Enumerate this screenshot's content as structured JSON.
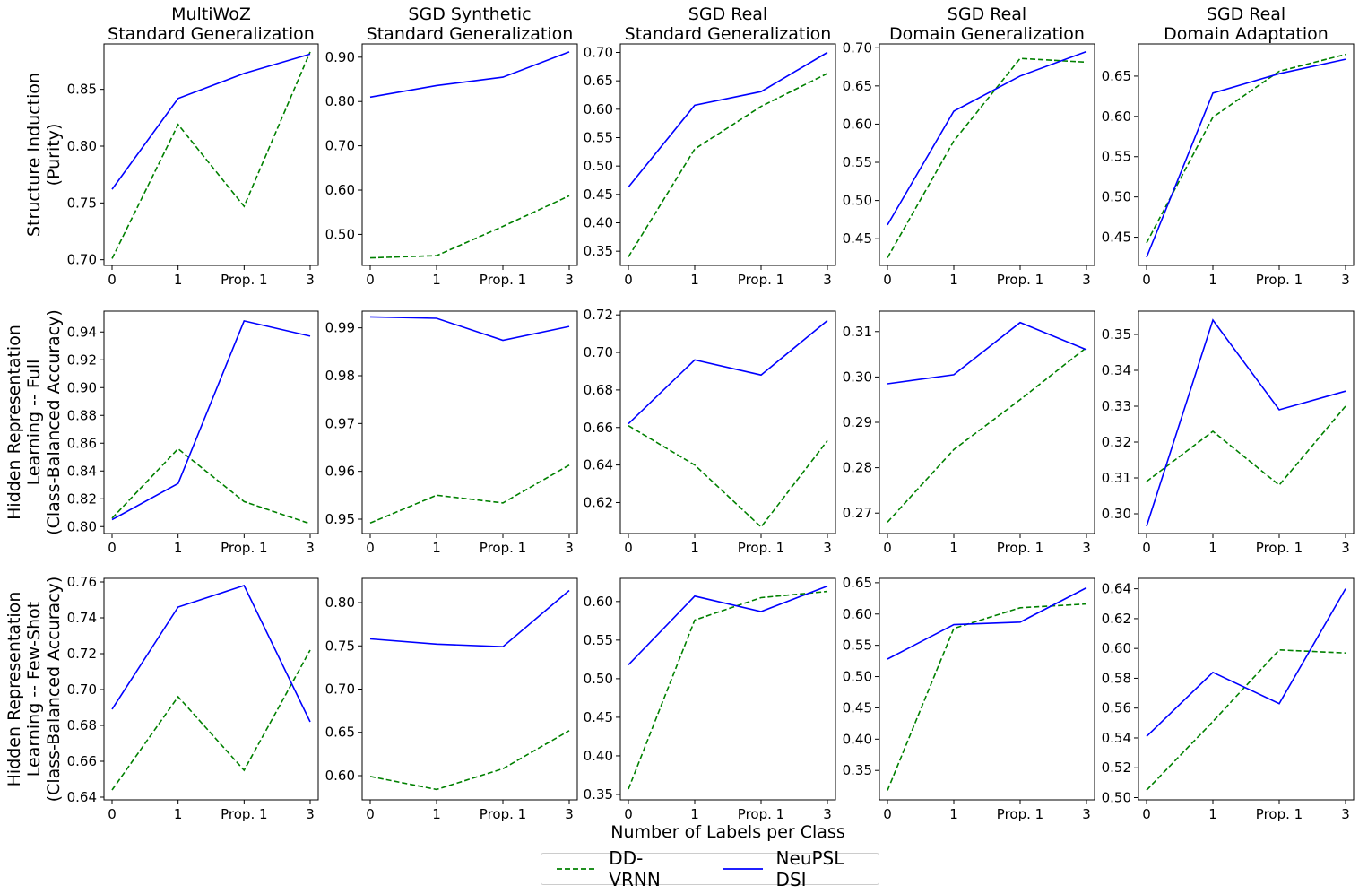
{
  "figure": {
    "xlabel": "Number of Labels per Class",
    "row_labels": [
      [
        "Structure Induction",
        "(Purity)"
      ],
      [
        "Hidden Representation",
        "Learning -- Full",
        "(Class-Balanced Accuracy)"
      ],
      [
        "Hidden Representation",
        "Learning -- Few-Shot",
        "(Class-Balanced Accuracy)"
      ]
    ],
    "column_titles": [
      [
        "MultiWoZ",
        "Standard Generalization"
      ],
      [
        "SGD Synthetic",
        "Standard Generalization"
      ],
      [
        "SGD Real",
        "Standard Generalization"
      ],
      [
        "SGD Real",
        "Domain Generalization"
      ],
      [
        "SGD Real",
        "Domain Adaptation"
      ]
    ],
    "legend": [
      {
        "label": "DD-VRNN",
        "color": "#008000",
        "style": "dashed"
      },
      {
        "label": "NeuPSL DSI",
        "color": "#0000ff",
        "style": "solid"
      }
    ]
  },
  "chart_data": [
    {
      "type": "line",
      "row": 0,
      "col": 0,
      "categories": [
        "0",
        "1",
        "Prop. 1",
        "3"
      ],
      "ylim": [
        0.695,
        0.89
      ],
      "yticks": [
        "0.70",
        "0.75",
        "0.80",
        "0.85"
      ],
      "series": [
        {
          "name": "DD-VRNN",
          "values": [
            0.701,
            0.819,
            0.747,
            0.883
          ]
        },
        {
          "name": "NeuPSL DSI",
          "values": [
            0.762,
            0.842,
            0.864,
            0.881
          ]
        }
      ]
    },
    {
      "type": "line",
      "row": 0,
      "col": 1,
      "categories": [
        "0",
        "1",
        "Prop. 1",
        "3"
      ],
      "ylim": [
        0.43,
        0.93
      ],
      "yticks": [
        "0.50",
        "0.60",
        "0.70",
        "0.80",
        "0.90"
      ],
      "series": [
        {
          "name": "DD-VRNN",
          "values": [
            0.447,
            0.452,
            0.518,
            0.587
          ]
        },
        {
          "name": "NeuPSL DSI",
          "values": [
            0.81,
            0.836,
            0.855,
            0.912
          ]
        }
      ]
    },
    {
      "type": "line",
      "row": 0,
      "col": 2,
      "categories": [
        "0",
        "1",
        "Prop. 1",
        "3"
      ],
      "ylim": [
        0.325,
        0.715
      ],
      "yticks": [
        "0.35",
        "0.40",
        "0.45",
        "0.50",
        "0.55",
        "0.60",
        "0.65",
        "0.70"
      ],
      "series": [
        {
          "name": "DD-VRNN",
          "values": [
            0.34,
            0.53,
            0.605,
            0.663
          ]
        },
        {
          "name": "NeuPSL DSI",
          "values": [
            0.463,
            0.607,
            0.631,
            0.7
          ]
        }
      ]
    },
    {
      "type": "line",
      "row": 0,
      "col": 3,
      "categories": [
        "0",
        "1",
        "Prop. 1",
        "3"
      ],
      "ylim": [
        0.415,
        0.705
      ],
      "yticks": [
        "0.45",
        "0.50",
        "0.55",
        "0.60",
        "0.65",
        "0.70"
      ],
      "series": [
        {
          "name": "DD-VRNN",
          "values": [
            0.425,
            0.578,
            0.686,
            0.681
          ]
        },
        {
          "name": "NeuPSL DSI",
          "values": [
            0.468,
            0.617,
            0.663,
            0.695
          ]
        }
      ]
    },
    {
      "type": "line",
      "row": 0,
      "col": 4,
      "categories": [
        "0",
        "1",
        "Prop. 1",
        "3"
      ],
      "ylim": [
        0.415,
        0.69
      ],
      "yticks": [
        "0.45",
        "0.50",
        "0.55",
        "0.60",
        "0.65"
      ],
      "series": [
        {
          "name": "DD-VRNN",
          "values": [
            0.443,
            0.599,
            0.656,
            0.677
          ]
        },
        {
          "name": "NeuPSL DSI",
          "values": [
            0.425,
            0.629,
            0.653,
            0.671
          ]
        }
      ]
    },
    {
      "type": "line",
      "row": 1,
      "col": 0,
      "categories": [
        "0",
        "1",
        "Prop. 1",
        "3"
      ],
      "ylim": [
        0.795,
        0.955
      ],
      "yticks": [
        "0.80",
        "0.82",
        "0.84",
        "0.86",
        "0.88",
        "0.90",
        "0.92",
        "0.94"
      ],
      "series": [
        {
          "name": "DD-VRNN",
          "values": [
            0.806,
            0.856,
            0.818,
            0.802
          ]
        },
        {
          "name": "NeuPSL DSI",
          "values": [
            0.805,
            0.831,
            0.948,
            0.937
          ]
        }
      ]
    },
    {
      "type": "line",
      "row": 1,
      "col": 1,
      "categories": [
        "0",
        "1",
        "Prop. 1",
        "3"
      ],
      "ylim": [
        0.947,
        0.9935
      ],
      "yticks": [
        "0.95",
        "0.96",
        "0.97",
        "0.98",
        "0.99"
      ],
      "series": [
        {
          "name": "DD-VRNN",
          "values": [
            0.9492,
            0.955,
            0.9534,
            0.9613
          ]
        },
        {
          "name": "NeuPSL DSI",
          "values": [
            0.9923,
            0.992,
            0.9874,
            0.9903
          ]
        }
      ]
    },
    {
      "type": "line",
      "row": 1,
      "col": 2,
      "categories": [
        "0",
        "1",
        "Prop. 1",
        "3"
      ],
      "ylim": [
        0.6035,
        0.722
      ],
      "yticks": [
        "0.62",
        "0.64",
        "0.66",
        "0.68",
        "0.70",
        "0.72"
      ],
      "series": [
        {
          "name": "DD-VRNN",
          "values": [
            0.661,
            0.64,
            0.607,
            0.653
          ]
        },
        {
          "name": "NeuPSL DSI",
          "values": [
            0.662,
            0.696,
            0.688,
            0.717
          ]
        }
      ]
    },
    {
      "type": "line",
      "row": 1,
      "col": 3,
      "categories": [
        "0",
        "1",
        "Prop. 1",
        "3"
      ],
      "ylim": [
        0.2655,
        0.3145
      ],
      "yticks": [
        "0.27",
        "0.28",
        "0.29",
        "0.30",
        "0.31"
      ],
      "series": [
        {
          "name": "DD-VRNN",
          "values": [
            0.268,
            0.284,
            0.295,
            0.3065
          ]
        },
        {
          "name": "NeuPSL DSI",
          "values": [
            0.2985,
            0.3005,
            0.312,
            0.306
          ]
        }
      ]
    },
    {
      "type": "line",
      "row": 1,
      "col": 4,
      "categories": [
        "0",
        "1",
        "Prop. 1",
        "3"
      ],
      "ylim": [
        0.2945,
        0.3565
      ],
      "yticks": [
        "0.30",
        "0.31",
        "0.32",
        "0.33",
        "0.34",
        "0.35"
      ],
      "series": [
        {
          "name": "DD-VRNN",
          "values": [
            0.309,
            0.323,
            0.308,
            0.33
          ]
        },
        {
          "name": "NeuPSL DSI",
          "values": [
            0.2965,
            0.354,
            0.329,
            0.3342
          ]
        }
      ]
    },
    {
      "type": "line",
      "row": 2,
      "col": 0,
      "categories": [
        "0",
        "1",
        "Prop. 1",
        "3"
      ],
      "ylim": [
        0.6385,
        0.762
      ],
      "yticks": [
        "0.64",
        "0.66",
        "0.68",
        "0.70",
        "0.72",
        "0.74",
        "0.76"
      ],
      "series": [
        {
          "name": "DD-VRNN",
          "values": [
            0.644,
            0.696,
            0.655,
            0.722
          ]
        },
        {
          "name": "NeuPSL DSI",
          "values": [
            0.689,
            0.746,
            0.758,
            0.682
          ]
        }
      ]
    },
    {
      "type": "line",
      "row": 2,
      "col": 1,
      "categories": [
        "0",
        "1",
        "Prop. 1",
        "3"
      ],
      "ylim": [
        0.572,
        0.828
      ],
      "yticks": [
        "0.60",
        "0.65",
        "0.70",
        "0.75",
        "0.80"
      ],
      "series": [
        {
          "name": "DD-VRNN",
          "values": [
            0.599,
            0.584,
            0.608,
            0.652
          ]
        },
        {
          "name": "NeuPSL DSI",
          "values": [
            0.758,
            0.752,
            0.749,
            0.814
          ]
        }
      ]
    },
    {
      "type": "line",
      "row": 2,
      "col": 2,
      "categories": [
        "0",
        "1",
        "Prop. 1",
        "3"
      ],
      "ylim": [
        0.343,
        0.63
      ],
      "yticks": [
        "0.35",
        "0.40",
        "0.45",
        "0.50",
        "0.55",
        "0.60"
      ],
      "series": [
        {
          "name": "DD-VRNN",
          "values": [
            0.357,
            0.576,
            0.605,
            0.613
          ]
        },
        {
          "name": "NeuPSL DSI",
          "values": [
            0.518,
            0.607,
            0.587,
            0.62
          ]
        }
      ]
    },
    {
      "type": "line",
      "row": 2,
      "col": 3,
      "categories": [
        "0",
        "1",
        "Prop. 1",
        "3"
      ],
      "ylim": [
        0.303,
        0.657
      ],
      "yticks": [
        "0.35",
        "0.40",
        "0.45",
        "0.50",
        "0.55",
        "0.60",
        "0.65"
      ],
      "series": [
        {
          "name": "DD-VRNN",
          "values": [
            0.318,
            0.577,
            0.61,
            0.616
          ]
        },
        {
          "name": "NeuPSL DSI",
          "values": [
            0.528,
            0.583,
            0.587,
            0.642
          ]
        }
      ]
    },
    {
      "type": "line",
      "row": 2,
      "col": 4,
      "categories": [
        "0",
        "1",
        "Prop. 1",
        "3"
      ],
      "ylim": [
        0.4985,
        0.647
      ],
      "yticks": [
        "0.50",
        "0.52",
        "0.54",
        "0.56",
        "0.58",
        "0.60",
        "0.62",
        "0.64"
      ],
      "series": [
        {
          "name": "DD-VRNN",
          "values": [
            0.505,
            0.551,
            0.599,
            0.597
          ]
        },
        {
          "name": "NeuPSL DSI",
          "values": [
            0.541,
            0.584,
            0.563,
            0.64
          ]
        }
      ]
    }
  ]
}
